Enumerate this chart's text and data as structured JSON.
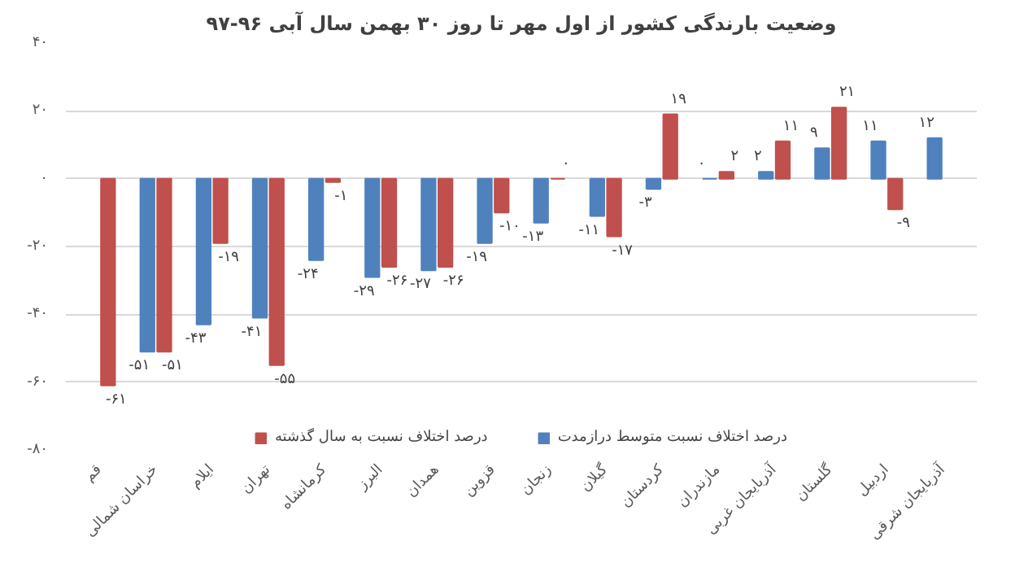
{
  "chart_data": {
    "type": "bar",
    "title": "وضعیت بارندگی کشور از اول مهر تا روز ۳۰ بهمن سال آبی ۹۶-۹۷",
    "categories": [
      "قم",
      "خراسان شمالی",
      "ایلام",
      "تهران",
      "کرمانشاه",
      "البرز",
      "همدان",
      "قزوین",
      "زنجان",
      "گیلان",
      "کردستان",
      "مازندران",
      "آذربایجان غربی",
      "گلستان",
      "اردبیل",
      "آذربایجان شرقی"
    ],
    "series": [
      {
        "name": "درصد اختلاف نسبت متوسط درازمدت",
        "color": "#4f81bd",
        "values": [
          null,
          -51,
          -43,
          -41,
          -24,
          -29,
          -27,
          -19,
          -13,
          -11,
          -3,
          0,
          2,
          9,
          11,
          12
        ],
        "value_labels": [
          null,
          "-۵۱",
          "-۴۳",
          "-۴۱",
          "-۲۴",
          "-۲۹",
          "-۲۷",
          "-۱۹",
          "-۱۳",
          "-۱۱",
          "-۳",
          "۰",
          "۲",
          "۹",
          "۱۱",
          "۱۲"
        ]
      },
      {
        "name": "درصد اختلاف نسبت به سال گذشته",
        "color": "#c0504d",
        "values": [
          -61,
          -51,
          -19,
          -55,
          -1,
          -26,
          -26,
          -10,
          0,
          -17,
          19,
          2,
          11,
          21,
          -9,
          null
        ],
        "value_labels": [
          "-۶۱",
          "-۵۱",
          "-۱۹",
          "-۵۵",
          "-۱",
          "-۲۶",
          "-۲۶",
          "-۱۰",
          "۰",
          "-۱۷",
          "۱۹",
          "۲",
          "۱۱",
          "۲۱",
          "-۹",
          null
        ]
      }
    ],
    "ylim": [
      -80,
      40
    ],
    "yticks": [
      {
        "value": 40,
        "label": "۴۰"
      },
      {
        "value": 20,
        "label": "۲۰"
      },
      {
        "value": 0,
        "label": "۰"
      },
      {
        "value": -20,
        "label": "-۲۰"
      },
      {
        "value": -40,
        "label": "-۴۰"
      },
      {
        "value": -60,
        "label": "-۶۰"
      },
      {
        "value": -80,
        "label": "-۸۰"
      }
    ],
    "grid": "y",
    "legend": "bottom"
  }
}
